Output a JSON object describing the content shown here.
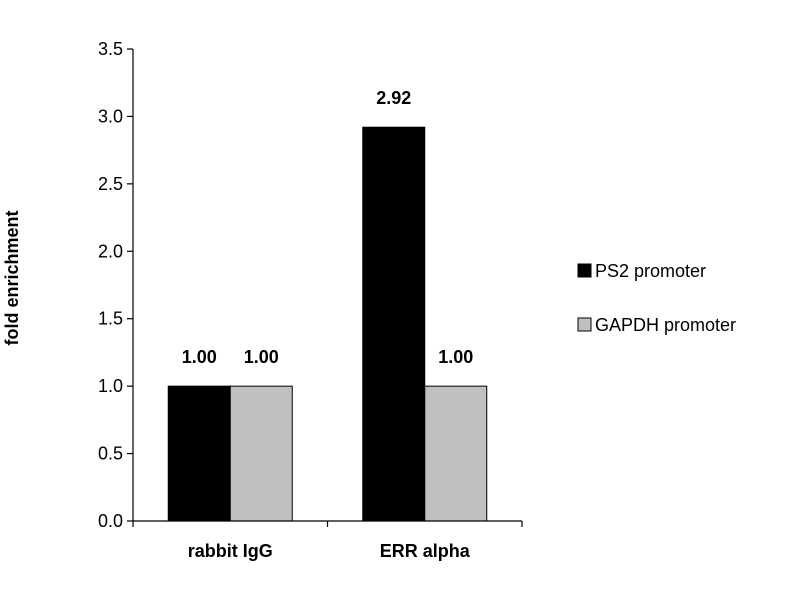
{
  "chart_data": {
    "type": "bar",
    "title": "",
    "xlabel": "",
    "ylabel": "fold enrichment",
    "categories": [
      "rabbit IgG",
      "ERR alpha"
    ],
    "series": [
      {
        "name": "PS2 promoter",
        "values": [
          1.0,
          2.92
        ],
        "color": "#000000"
      },
      {
        "name": "GAPDH promoter",
        "values": [
          1.0,
          1.0
        ],
        "color": "#c0c0c0"
      }
    ],
    "data_labels": [
      [
        "1.00",
        "2.92"
      ],
      [
        "1.00",
        "1.00"
      ]
    ],
    "ylim": [
      0,
      3.5
    ],
    "yticks": [
      "0.0",
      "0.5",
      "1.0",
      "1.5",
      "2.0",
      "2.5",
      "3.0",
      "3.5"
    ],
    "grid": false,
    "legend_position": "right"
  }
}
